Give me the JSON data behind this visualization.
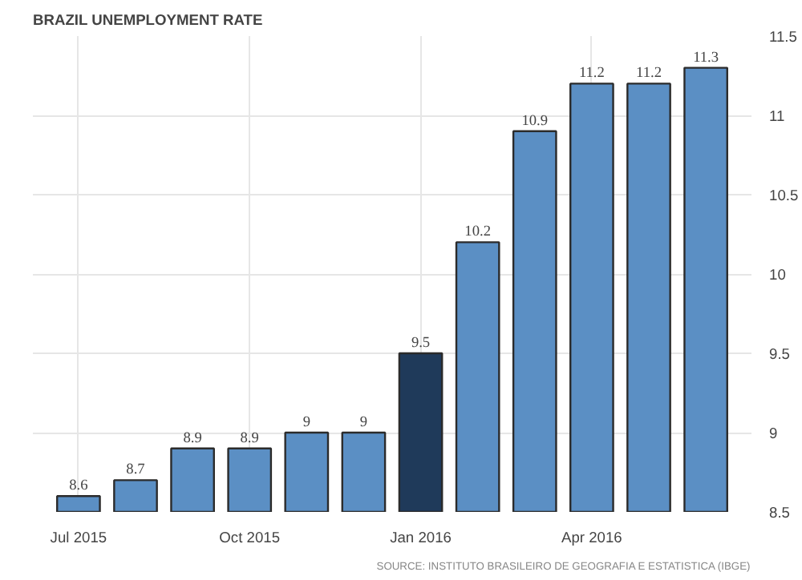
{
  "chart_data": {
    "type": "bar",
    "title": "BRAZIL UNEMPLOYMENT RATE",
    "categories": [
      "Jul 2015",
      null,
      null,
      "Oct 2015",
      null,
      null,
      "Jan 2016",
      null,
      null,
      "Apr 2016",
      null,
      null
    ],
    "values": [
      8.6,
      8.7,
      8.9,
      8.9,
      9,
      9,
      9.5,
      10.2,
      10.9,
      11.2,
      11.2,
      11.3
    ],
    "colors": [
      "#5b8fc4",
      "#5b8fc4",
      "#5b8fc4",
      "#5b8fc4",
      "#5b8fc4",
      "#5b8fc4",
      "#1f3a5a",
      "#5b8fc4",
      "#5b8fc4",
      "#5b8fc4",
      "#5b8fc4",
      "#5b8fc4"
    ],
    "ylim": [
      8.5,
      11.5
    ],
    "yticks": [
      8.5,
      9,
      9.5,
      10,
      10.5,
      11,
      11.5
    ],
    "grid": true,
    "data_labels": true,
    "annotations": [
      "SOURCE: INSTITUTO BRASILEIRO DE GEOGRAFIA E ESTATISTICA (IBGE)"
    ]
  }
}
